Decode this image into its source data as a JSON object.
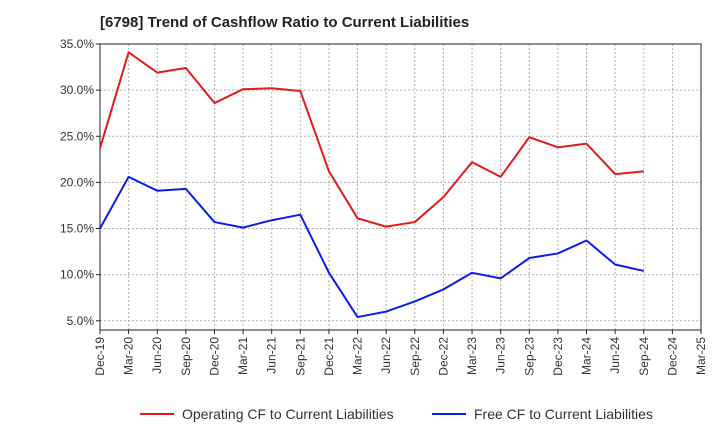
{
  "chart_data": {
    "type": "line",
    "title": "[6798]  Trend of Cashflow Ratio to Current Liabilities",
    "xlabel": "",
    "ylabel": "",
    "categories": [
      "Dec-19",
      "Mar-20",
      "Jun-20",
      "Sep-20",
      "Dec-20",
      "Mar-21",
      "Jun-21",
      "Sep-21",
      "Dec-21",
      "Mar-22",
      "Jun-22",
      "Sep-22",
      "Dec-22",
      "Mar-23",
      "Jun-23",
      "Sep-23",
      "Dec-23",
      "Mar-24",
      "Jun-24",
      "Sep-24",
      "Dec-24",
      "Mar-25"
    ],
    "ylim": [
      4.0,
      35.0
    ],
    "yticks": [
      5.0,
      10.0,
      15.0,
      20.0,
      25.0,
      30.0,
      35.0
    ],
    "ytick_labels": [
      "5.0%",
      "10.0%",
      "15.0%",
      "20.0%",
      "25.0%",
      "30.0%",
      "35.0%"
    ],
    "grid": true,
    "legend_position": "bottom",
    "series": [
      {
        "name": "Operating CF to Current Liabilities",
        "color": "#e31a1c",
        "values": [
          23.7,
          34.1,
          31.9,
          32.4,
          28.6,
          30.1,
          30.2,
          29.9,
          21.2,
          16.1,
          15.2,
          15.7,
          18.4,
          22.2,
          20.6,
          24.9,
          23.8,
          24.2,
          20.9,
          21.2,
          null,
          null
        ]
      },
      {
        "name": "Free CF to Current Liabilities",
        "color": "#0a1ee8",
        "values": [
          15.0,
          20.6,
          19.1,
          19.3,
          15.7,
          15.1,
          15.9,
          16.5,
          10.2,
          5.4,
          6.0,
          7.1,
          8.4,
          10.2,
          9.6,
          11.8,
          12.3,
          13.7,
          11.1,
          10.4,
          null,
          null
        ]
      }
    ]
  }
}
